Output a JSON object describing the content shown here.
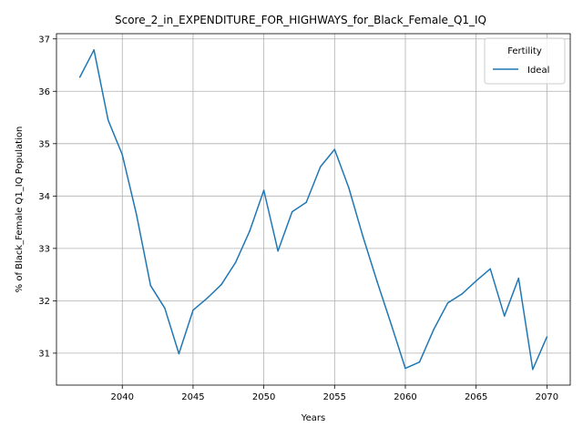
{
  "chart_data": {
    "type": "line",
    "title": "Score_2_in_EXPENDITURE_FOR_HIGHWAYS_for_Black_Female_Q1_IQ",
    "xlabel": "Years",
    "ylabel": "% of Black_Female Q1_IQ Population",
    "xlim": [
      2035.35,
      2071.65
    ],
    "ylim": [
      30.39,
      37.1
    ],
    "xticks": [
      2040,
      2045,
      2050,
      2055,
      2060,
      2065,
      2070
    ],
    "yticks": [
      31,
      32,
      33,
      34,
      35,
      36,
      37
    ],
    "grid": true,
    "legend": {
      "title": "Fertility",
      "placement": "top-right"
    },
    "series": [
      {
        "name": "Ideal",
        "color": "#1f77b4",
        "x": [
          2037,
          2038,
          2039,
          2040,
          2041,
          2042,
          2043,
          2044,
          2045,
          2046,
          2047,
          2048,
          2049,
          2050,
          2051,
          2052,
          2053,
          2054,
          2055,
          2056,
          2057,
          2058,
          2059,
          2060,
          2061,
          2062,
          2063,
          2064,
          2065,
          2066,
          2067,
          2068,
          2069,
          2070
        ],
        "values": [
          36.27,
          36.79,
          35.45,
          34.79,
          33.65,
          32.29,
          31.86,
          30.99,
          31.82,
          32.05,
          32.31,
          32.73,
          33.33,
          34.11,
          32.95,
          33.7,
          33.88,
          34.56,
          34.89,
          34.16,
          33.23,
          32.37,
          31.55,
          30.71,
          30.83,
          31.45,
          31.96,
          32.13,
          32.38,
          32.61,
          31.71,
          32.43,
          30.69,
          31.31
        ]
      }
    ]
  }
}
